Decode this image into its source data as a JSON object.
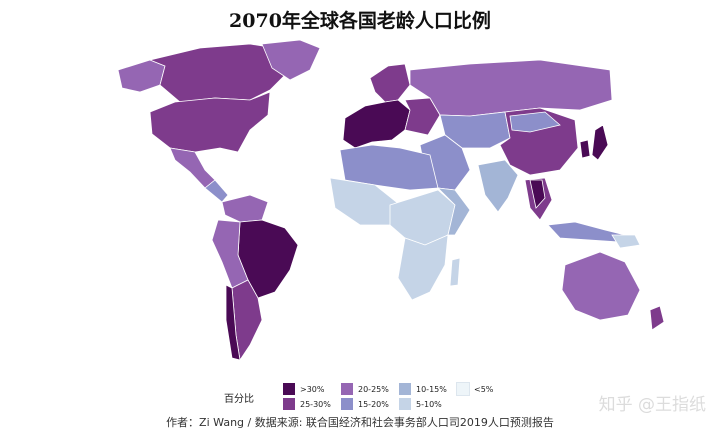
{
  "title": "2070年全球各国老龄人口比例",
  "legend": {
    "title": "百分比",
    "items": [
      {
        "label": ">30%",
        "color": "#4a0a55"
      },
      {
        "label": "25-30%",
        "color": "#7e3b8c"
      },
      {
        "label": "20-25%",
        "color": "#9566b3"
      },
      {
        "label": "15-20%",
        "color": "#8c8fca"
      },
      {
        "label": "10-15%",
        "color": "#a3b5d6"
      },
      {
        "label": "5-10%",
        "color": "#c5d4e7"
      },
      {
        "label": "<5%",
        "color": "#eef5f9"
      }
    ]
  },
  "caption": "作者：Zi Wang / 数据来源: 联合国经济和社会事务部人口司2019人口预测报告",
  "watermark": "知乎 @王指纸"
}
